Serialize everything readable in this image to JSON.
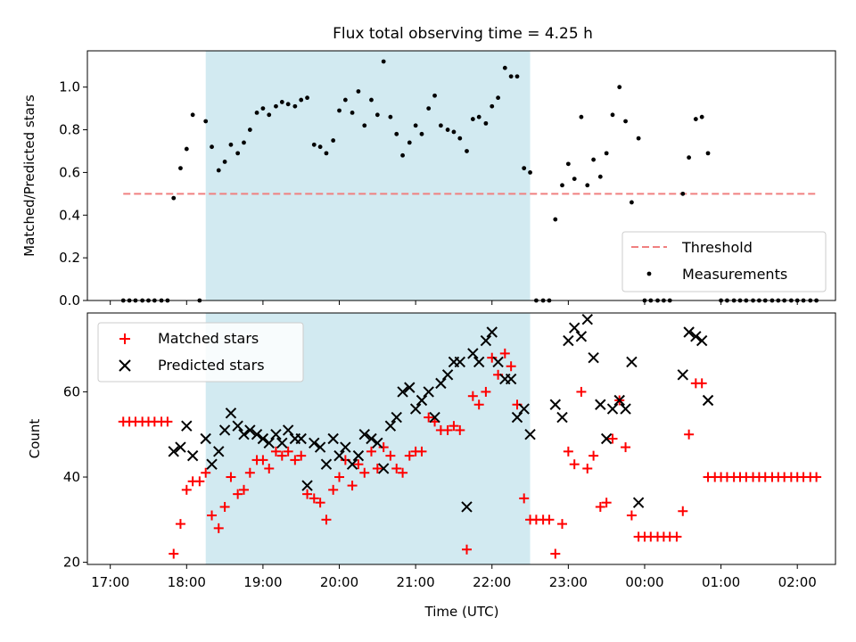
{
  "title": "Flux total observing time = 4.25 h",
  "colors": {
    "shade": "#add8e6",
    "threshold": "#f08080",
    "matched": "#ff0000",
    "predicted": "#000000",
    "measurement": "#000000"
  },
  "chart_data": [
    {
      "type": "scatter",
      "ylabel": "Matched/Predicted stars",
      "ylim": [
        0,
        1.17
      ],
      "xlim": [
        16.7,
        26.5
      ],
      "yticks": [
        {
          "v": 0.0,
          "label": "0.0"
        },
        {
          "v": 0.2,
          "label": "0.2"
        },
        {
          "v": 0.4,
          "label": "0.4"
        },
        {
          "v": 0.6,
          "label": "0.6"
        },
        {
          "v": 0.8,
          "label": "0.8"
        },
        {
          "v": 1.0,
          "label": "1.0"
        }
      ],
      "shaded_span": [
        18.25,
        22.5
      ],
      "threshold": {
        "value": 0.5,
        "x": [
          17.17,
          26.25
        ]
      },
      "legend": {
        "placement": "lower-right",
        "threshold_label": "Threshold",
        "measurement_label": "Measurements"
      },
      "measurements": [
        [
          17.17,
          0
        ],
        [
          17.25,
          0
        ],
        [
          17.33,
          0
        ],
        [
          17.42,
          0
        ],
        [
          17.5,
          0
        ],
        [
          17.58,
          0
        ],
        [
          17.67,
          0
        ],
        [
          17.75,
          0
        ],
        [
          17.83,
          0.48
        ],
        [
          17.92,
          0.62
        ],
        [
          18.0,
          0.71
        ],
        [
          18.08,
          0.87
        ],
        [
          18.17,
          0
        ],
        [
          18.25,
          0.84
        ],
        [
          18.33,
          0.72
        ],
        [
          18.42,
          0.61
        ],
        [
          18.5,
          0.65
        ],
        [
          18.58,
          0.73
        ],
        [
          18.67,
          0.69
        ],
        [
          18.75,
          0.74
        ],
        [
          18.83,
          0.8
        ],
        [
          18.92,
          0.88
        ],
        [
          19.0,
          0.9
        ],
        [
          19.08,
          0.87
        ],
        [
          19.17,
          0.91
        ],
        [
          19.25,
          0.93
        ],
        [
          19.33,
          0.92
        ],
        [
          19.42,
          0.91
        ],
        [
          19.5,
          0.94
        ],
        [
          19.58,
          0.95
        ],
        [
          19.67,
          0.73
        ],
        [
          19.75,
          0.72
        ],
        [
          19.83,
          0.69
        ],
        [
          19.92,
          0.75
        ],
        [
          20.0,
          0.89
        ],
        [
          20.08,
          0.94
        ],
        [
          20.17,
          0.88
        ],
        [
          20.25,
          0.98
        ],
        [
          20.33,
          0.82
        ],
        [
          20.42,
          0.94
        ],
        [
          20.5,
          0.87
        ],
        [
          20.58,
          1.12
        ],
        [
          20.67,
          0.86
        ],
        [
          20.75,
          0.78
        ],
        [
          20.83,
          0.68
        ],
        [
          20.92,
          0.74
        ],
        [
          21.0,
          0.82
        ],
        [
          21.08,
          0.78
        ],
        [
          21.17,
          0.9
        ],
        [
          21.25,
          0.96
        ],
        [
          21.33,
          0.82
        ],
        [
          21.42,
          0.8
        ],
        [
          21.5,
          0.79
        ],
        [
          21.58,
          0.76
        ],
        [
          21.67,
          0.7
        ],
        [
          21.75,
          0.85
        ],
        [
          21.83,
          0.86
        ],
        [
          21.92,
          0.83
        ],
        [
          22.0,
          0.91
        ],
        [
          22.08,
          0.95
        ],
        [
          22.17,
          1.09
        ],
        [
          22.25,
          1.05
        ],
        [
          22.33,
          1.05
        ],
        [
          22.42,
          0.62
        ],
        [
          22.5,
          0.6
        ],
        [
          22.58,
          0
        ],
        [
          22.67,
          0
        ],
        [
          22.75,
          0
        ],
        [
          22.83,
          0.38
        ],
        [
          22.92,
          0.54
        ],
        [
          23.0,
          0.64
        ],
        [
          23.08,
          0.57
        ],
        [
          23.17,
          0.86
        ],
        [
          23.25,
          0.54
        ],
        [
          23.33,
          0.66
        ],
        [
          23.42,
          0.58
        ],
        [
          23.5,
          0.69
        ],
        [
          23.58,
          0.87
        ],
        [
          23.67,
          1.0
        ],
        [
          23.75,
          0.84
        ],
        [
          23.83,
          0.46
        ],
        [
          23.92,
          0.76
        ],
        [
          24.0,
          0
        ],
        [
          24.08,
          0
        ],
        [
          24.17,
          0
        ],
        [
          24.25,
          0
        ],
        [
          24.33,
          0
        ],
        [
          24.5,
          0.5
        ],
        [
          24.58,
          0.67
        ],
        [
          24.67,
          0.85
        ],
        [
          24.75,
          0.86
        ],
        [
          24.83,
          0.69
        ],
        [
          25.0,
          0
        ],
        [
          25.08,
          0
        ],
        [
          25.17,
          0
        ],
        [
          25.25,
          0
        ],
        [
          25.33,
          0
        ],
        [
          25.42,
          0
        ],
        [
          25.5,
          0
        ],
        [
          25.58,
          0
        ],
        [
          25.67,
          0
        ],
        [
          25.75,
          0
        ],
        [
          25.83,
          0
        ],
        [
          25.92,
          0
        ],
        [
          26.0,
          0
        ],
        [
          26.08,
          0
        ],
        [
          26.17,
          0
        ],
        [
          26.25,
          0
        ]
      ]
    },
    {
      "type": "scatter",
      "xlabel": "Time (UTC)",
      "ylabel": "Count",
      "ylim": [
        19.5,
        78.5
      ],
      "xlim": [
        16.7,
        26.5
      ],
      "yticks": [
        {
          "v": 20,
          "label": "20"
        },
        {
          "v": 40,
          "label": "40"
        },
        {
          "v": 60,
          "label": "60"
        }
      ],
      "xticks": [
        {
          "v": 17,
          "label": "17:00"
        },
        {
          "v": 18,
          "label": "18:00"
        },
        {
          "v": 19,
          "label": "19:00"
        },
        {
          "v": 20,
          "label": "20:00"
        },
        {
          "v": 21,
          "label": "21:00"
        },
        {
          "v": 22,
          "label": "22:00"
        },
        {
          "v": 23,
          "label": "23:00"
        },
        {
          "v": 24,
          "label": "00:00"
        },
        {
          "v": 25,
          "label": "01:00"
        },
        {
          "v": 26,
          "label": "02:00"
        }
      ],
      "shaded_span": [
        18.25,
        22.5
      ],
      "legend": {
        "placement": "upper-left",
        "matched_label": "Matched stars",
        "predicted_label": "Predicted stars"
      },
      "matched": [
        [
          17.17,
          53
        ],
        [
          17.25,
          53
        ],
        [
          17.33,
          53
        ],
        [
          17.42,
          53
        ],
        [
          17.5,
          53
        ],
        [
          17.58,
          53
        ],
        [
          17.67,
          53
        ],
        [
          17.75,
          53
        ],
        [
          17.83,
          22
        ],
        [
          17.92,
          29
        ],
        [
          18.0,
          37
        ],
        [
          18.08,
          39
        ],
        [
          18.17,
          39
        ],
        [
          18.25,
          41
        ],
        [
          18.33,
          31
        ],
        [
          18.42,
          28
        ],
        [
          18.5,
          33
        ],
        [
          18.58,
          40
        ],
        [
          18.67,
          36
        ],
        [
          18.75,
          37
        ],
        [
          18.83,
          41
        ],
        [
          18.92,
          44
        ],
        [
          19.0,
          44
        ],
        [
          19.08,
          42
        ],
        [
          19.17,
          46
        ],
        [
          19.25,
          45
        ],
        [
          19.33,
          46
        ],
        [
          19.42,
          44
        ],
        [
          19.5,
          45
        ],
        [
          19.58,
          36
        ],
        [
          19.67,
          35
        ],
        [
          19.75,
          34
        ],
        [
          19.83,
          30
        ],
        [
          19.92,
          37
        ],
        [
          20.0,
          40
        ],
        [
          20.08,
          44
        ],
        [
          20.17,
          38
        ],
        [
          20.25,
          43
        ],
        [
          20.33,
          41
        ],
        [
          20.42,
          46
        ],
        [
          20.5,
          42
        ],
        [
          20.58,
          47
        ],
        [
          20.67,
          45
        ],
        [
          20.75,
          42
        ],
        [
          20.83,
          41
        ],
        [
          20.92,
          45
        ],
        [
          21.0,
          46
        ],
        [
          21.08,
          46
        ],
        [
          21.17,
          54
        ],
        [
          21.25,
          53
        ],
        [
          21.33,
          51
        ],
        [
          21.42,
          51
        ],
        [
          21.5,
          52
        ],
        [
          21.58,
          51
        ],
        [
          21.67,
          23
        ],
        [
          21.75,
          59
        ],
        [
          21.83,
          57
        ],
        [
          21.92,
          60
        ],
        [
          22.0,
          68
        ],
        [
          22.08,
          64
        ],
        [
          22.17,
          69
        ],
        [
          22.25,
          66
        ],
        [
          22.33,
          57
        ],
        [
          22.42,
          35
        ],
        [
          22.5,
          30
        ],
        [
          22.58,
          30
        ],
        [
          22.67,
          30
        ],
        [
          22.75,
          30
        ],
        [
          22.83,
          22
        ],
        [
          22.92,
          29
        ],
        [
          23.0,
          46
        ],
        [
          23.08,
          43
        ],
        [
          23.17,
          60
        ],
        [
          23.25,
          42
        ],
        [
          23.33,
          45
        ],
        [
          23.42,
          33
        ],
        [
          23.5,
          34
        ],
        [
          23.58,
          49
        ],
        [
          23.67,
          58
        ],
        [
          23.75,
          47
        ],
        [
          23.83,
          31
        ],
        [
          23.92,
          26
        ],
        [
          24.0,
          26
        ],
        [
          24.08,
          26
        ],
        [
          24.17,
          26
        ],
        [
          24.25,
          26
        ],
        [
          24.33,
          26
        ],
        [
          24.42,
          26
        ],
        [
          24.5,
          32
        ],
        [
          24.58,
          50
        ],
        [
          24.67,
          62
        ],
        [
          24.75,
          62
        ],
        [
          24.83,
          40
        ],
        [
          24.92,
          40
        ],
        [
          25.0,
          40
        ],
        [
          25.08,
          40
        ],
        [
          25.17,
          40
        ],
        [
          25.25,
          40
        ],
        [
          25.33,
          40
        ],
        [
          25.42,
          40
        ],
        [
          25.5,
          40
        ],
        [
          25.58,
          40
        ],
        [
          25.67,
          40
        ],
        [
          25.75,
          40
        ],
        [
          25.83,
          40
        ],
        [
          25.92,
          40
        ],
        [
          26.0,
          40
        ],
        [
          26.08,
          40
        ],
        [
          26.17,
          40
        ],
        [
          26.25,
          40
        ]
      ],
      "predicted": [
        [
          17.83,
          46
        ],
        [
          17.92,
          47
        ],
        [
          18.0,
          52
        ],
        [
          18.08,
          45
        ],
        [
          18.25,
          49
        ],
        [
          18.33,
          43
        ],
        [
          18.42,
          46
        ],
        [
          18.5,
          51
        ],
        [
          18.58,
          55
        ],
        [
          18.67,
          52
        ],
        [
          18.75,
          50
        ],
        [
          18.83,
          51
        ],
        [
          18.92,
          50
        ],
        [
          19.0,
          49
        ],
        [
          19.08,
          48
        ],
        [
          19.17,
          50
        ],
        [
          19.25,
          48
        ],
        [
          19.33,
          51
        ],
        [
          19.42,
          49
        ],
        [
          19.5,
          49
        ],
        [
          19.58,
          38
        ],
        [
          19.67,
          48
        ],
        [
          19.75,
          47
        ],
        [
          19.83,
          43
        ],
        [
          19.92,
          49
        ],
        [
          20.0,
          45
        ],
        [
          20.08,
          47
        ],
        [
          20.17,
          43
        ],
        [
          20.25,
          45
        ],
        [
          20.33,
          50
        ],
        [
          20.42,
          49
        ],
        [
          20.5,
          48
        ],
        [
          20.58,
          42
        ],
        [
          20.67,
          52
        ],
        [
          20.75,
          54
        ],
        [
          20.83,
          60
        ],
        [
          20.92,
          61
        ],
        [
          21.0,
          56
        ],
        [
          21.08,
          58
        ],
        [
          21.17,
          60
        ],
        [
          21.25,
          54
        ],
        [
          21.33,
          62
        ],
        [
          21.42,
          64
        ],
        [
          21.5,
          67
        ],
        [
          21.58,
          67
        ],
        [
          21.67,
          33
        ],
        [
          21.75,
          69
        ],
        [
          21.83,
          67
        ],
        [
          21.92,
          72
        ],
        [
          22.0,
          74
        ],
        [
          22.08,
          67
        ],
        [
          22.17,
          63
        ],
        [
          22.25,
          63
        ],
        [
          22.33,
          54
        ],
        [
          22.42,
          56
        ],
        [
          22.5,
          50
        ],
        [
          22.83,
          57
        ],
        [
          22.92,
          54
        ],
        [
          23.0,
          72
        ],
        [
          23.08,
          75
        ],
        [
          23.17,
          73
        ],
        [
          23.25,
          77
        ],
        [
          23.33,
          68
        ],
        [
          23.42,
          57
        ],
        [
          23.5,
          49
        ],
        [
          23.58,
          56
        ],
        [
          23.67,
          58
        ],
        [
          23.75,
          56
        ],
        [
          23.83,
          67
        ],
        [
          23.92,
          34
        ],
        [
          24.5,
          64
        ],
        [
          24.58,
          74
        ],
        [
          24.67,
          73
        ],
        [
          24.75,
          72
        ],
        [
          24.83,
          58
        ]
      ]
    }
  ]
}
